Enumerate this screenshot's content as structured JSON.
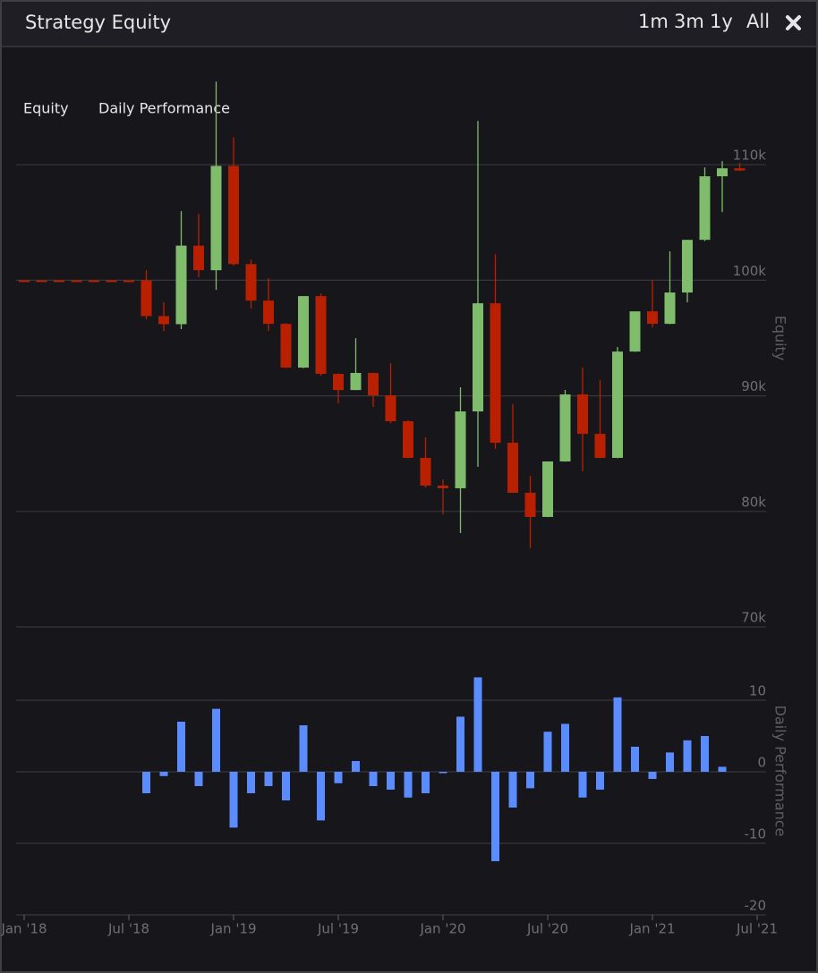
{
  "header": {
    "title": "Strategy Equity",
    "ranges": [
      "1m",
      "3m",
      "1y",
      "All"
    ]
  },
  "chart_data": [
    {
      "type": "candlestick",
      "x": [
        "2018-01",
        "2018-02",
        "2018-03",
        "2018-04",
        "2018-05",
        "2018-06",
        "2018-07",
        "2018-08",
        "2018-09",
        "2018-10",
        "2018-11",
        "2018-12",
        "2019-01",
        "2019-02",
        "2019-03",
        "2019-04",
        "2019-05",
        "2019-06",
        "2019-07",
        "2019-08",
        "2019-09",
        "2019-10",
        "2019-11",
        "2019-12",
        "2020-01",
        "2020-02",
        "2020-03",
        "2020-04",
        "2020-05",
        "2020-06",
        "2020-07",
        "2020-08",
        "2020-09",
        "2020-10",
        "2020-11",
        "2020-12",
        "2021-01",
        "2021-02",
        "2021-03",
        "2021-04",
        "2021-05",
        "2021-06"
      ],
      "series": [
        {
          "name": "Equity",
          "color_up": "#7fbd6c",
          "color_down": "#b92000",
          "open": [
            100000,
            100000,
            100000,
            100000,
            100000,
            100000,
            100000,
            100000,
            96900,
            96200,
            103000,
            100870,
            109900,
            101400,
            98240,
            96230,
            92440,
            98630,
            91900,
            90500,
            91980,
            90040,
            87800,
            84630,
            82230,
            82000,
            88650,
            98010,
            85940,
            81610,
            79520,
            84320,
            90120,
            86710,
            84630,
            93830,
            97310,
            96230,
            98940,
            103500,
            109000,
            109690
          ],
          "high": [
            100000,
            100000,
            100000,
            100000,
            100000,
            100000,
            100000,
            100870,
            98090,
            105980,
            105750,
            117190,
            112400,
            101800,
            100180,
            96300,
            98630,
            98860,
            91950,
            94990,
            92000,
            92830,
            87900,
            86410,
            82770,
            90740,
            113790,
            102260,
            89270,
            83080,
            84320,
            90510,
            92440,
            91360,
            94220,
            97310,
            100000,
            102500,
            103500,
            109770,
            110310,
            110150
          ],
          "low": [
            100000,
            100000,
            100000,
            100000,
            100000,
            100000,
            100000,
            96620,
            95610,
            95770,
            100250,
            99170,
            101260,
            97550,
            95610,
            92400,
            92400,
            91740,
            89340,
            90500,
            89040,
            87640,
            84600,
            82070,
            79750,
            78130,
            83850,
            85400,
            81600,
            76810,
            79500,
            84300,
            83470,
            84600,
            84600,
            93800,
            95920,
            96200,
            98090,
            103400,
            105900,
            109450
          ],
          "close": [
            100000,
            100000,
            100000,
            100000,
            100000,
            100000,
            100000,
            96900,
            96200,
            103000,
            100870,
            109900,
            101400,
            98240,
            96230,
            92440,
            98630,
            91900,
            90500,
            91980,
            90040,
            87800,
            84630,
            82230,
            82000,
            88650,
            98010,
            85940,
            81610,
            79520,
            84320,
            90120,
            86710,
            84630,
            93830,
            97310,
            96230,
            98940,
            103500,
            109000,
            109690,
            109500
          ]
        }
      ],
      "ylabel": "Equity",
      "xlim": [
        "2017-12",
        "2021-08"
      ],
      "ylim": [
        70000,
        120000
      ],
      "yticks": [
        {
          "value": 70000,
          "label": "70k"
        },
        {
          "value": 80000,
          "label": "80k"
        },
        {
          "value": 90000,
          "label": "90k"
        },
        {
          "value": 100000,
          "label": "100k"
        },
        {
          "value": 110000,
          "label": "110k"
        }
      ],
      "grid": true
    },
    {
      "type": "bar",
      "x": [
        "2018-08",
        "2018-09",
        "2018-10",
        "2018-11",
        "2018-12",
        "2019-01",
        "2019-02",
        "2019-03",
        "2019-04",
        "2019-05",
        "2019-06",
        "2019-07",
        "2019-08",
        "2019-09",
        "2019-10",
        "2019-11",
        "2019-12",
        "2020-01",
        "2020-02",
        "2020-03",
        "2020-04",
        "2020-05",
        "2020-06",
        "2020-07",
        "2020-08",
        "2020-09",
        "2020-10",
        "2020-11",
        "2020-12",
        "2021-01",
        "2021-02",
        "2021-03",
        "2021-04",
        "2021-05"
      ],
      "series": [
        {
          "name": "Daily Performance",
          "color": "#5b8cff",
          "values": [
            -3,
            -0.6,
            7,
            -2,
            8.8,
            -7.8,
            -3,
            -2,
            -4,
            6.5,
            -6.8,
            -1.6,
            1.5,
            -2,
            -2.5,
            -3.6,
            -3,
            -0.2,
            7.7,
            13.2,
            -12.5,
            -5,
            -2.3,
            5.6,
            6.7,
            -3.6,
            -2.5,
            10.4,
            3.5,
            -1,
            2.7,
            4.4,
            5,
            0.7
          ]
        }
      ],
      "ylabel": "Daily Performance",
      "xlim": [
        "2017-12",
        "2021-08"
      ],
      "ylim": [
        -20,
        20
      ],
      "yticks": [
        -20,
        -10,
        0,
        10
      ],
      "xticks": [
        {
          "value": "2018-01",
          "label": "Jan '18"
        },
        {
          "value": "2018-07",
          "label": "Jul '18"
        },
        {
          "value": "2019-01",
          "label": "Jan '19"
        },
        {
          "value": "2019-07",
          "label": "Jul '19"
        },
        {
          "value": "2020-01",
          "label": "Jan '20"
        },
        {
          "value": "2020-07",
          "label": "Jul '20"
        },
        {
          "value": "2021-01",
          "label": "Jan '21"
        },
        {
          "value": "2021-07",
          "label": "Jul '21"
        }
      ],
      "grid": true
    }
  ]
}
